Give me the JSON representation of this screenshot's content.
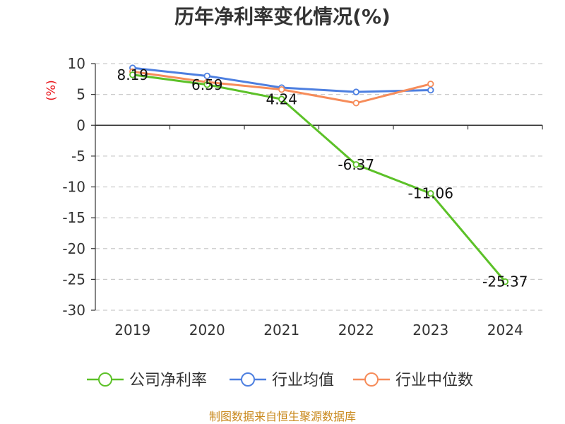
{
  "chart_data": {
    "type": "line",
    "title": "历年净利率变化情况(%)",
    "ylabel": "(%)",
    "xlabel": "",
    "categories": [
      "2019",
      "2020",
      "2021",
      "2022",
      "2023",
      "2024"
    ],
    "ylim": [
      -30,
      10
    ],
    "yticks": [
      "10",
      "5",
      "0",
      "-5",
      "-10",
      "-15",
      "-20",
      "-25",
      "-30"
    ],
    "ytick_values": [
      10,
      5,
      0,
      -5,
      -10,
      -15,
      -20,
      -25,
      -30
    ],
    "grid": true,
    "legend_position": "bottom",
    "series": [
      {
        "name": "公司净利率",
        "color": "#5cc128",
        "values": [
          8.19,
          6.59,
          4.24,
          -6.37,
          -11.06,
          -25.37
        ],
        "labels": [
          "8.19",
          "6.59",
          "4.24",
          "-6.37",
          "-11.06",
          "-25.37"
        ]
      },
      {
        "name": "行业均值",
        "color": "#4d7fe0",
        "values": [
          9.3,
          8.0,
          6.1,
          5.4,
          5.7,
          null
        ]
      },
      {
        "name": "行业中位数",
        "color": "#f68c5a",
        "values": [
          8.7,
          7.0,
          5.8,
          3.6,
          6.7,
          null
        ]
      }
    ]
  },
  "footer": {
    "source": "制图数据来自恒生聚源数据库"
  }
}
